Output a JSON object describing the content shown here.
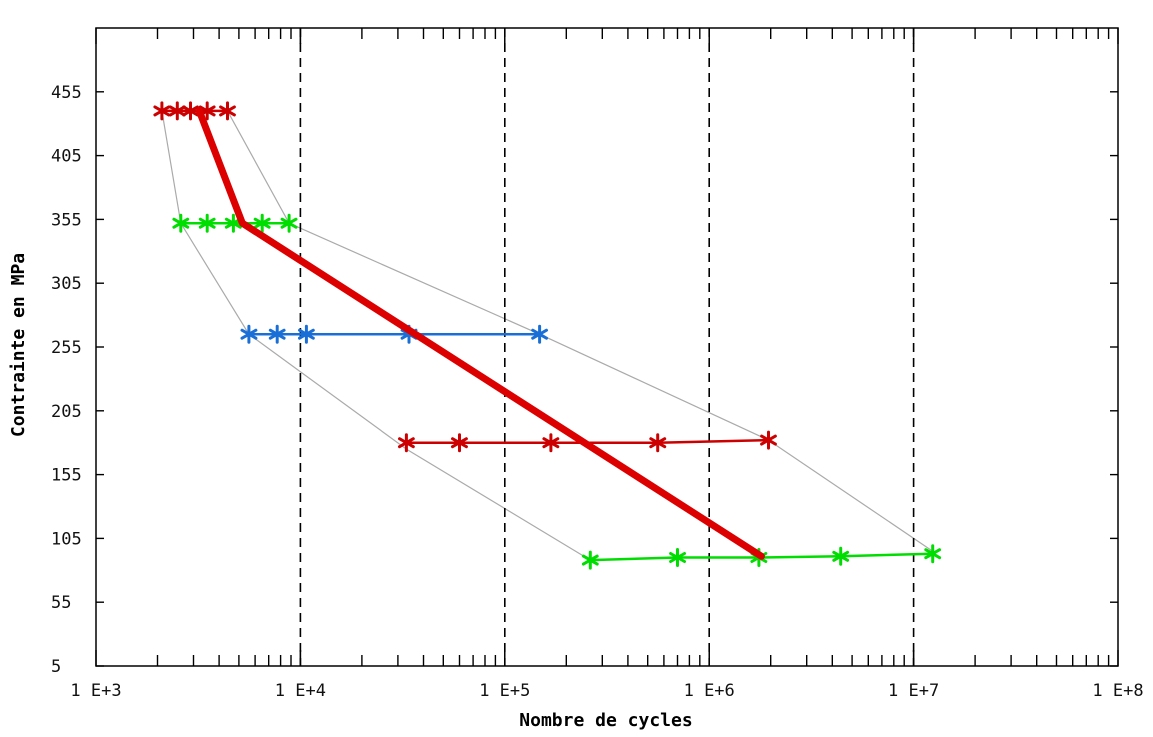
{
  "chart_data": {
    "type": "scatter",
    "title": "",
    "xlabel": "Nombre de cycles",
    "ylabel": "Contrainte en MPa",
    "x_scale": "log",
    "xlim": [
      1000,
      100000000
    ],
    "ylim": [
      5,
      505
    ],
    "x_tick_values": [
      1000,
      10000,
      100000,
      1000000,
      10000000,
      100000000
    ],
    "x_tick_labels": [
      "1 E+3",
      "1 E+4",
      "1 E+5",
      "1 E+6",
      "1 E+7",
      "1 E+8"
    ],
    "y_ticks": [
      5,
      55,
      105,
      155,
      205,
      255,
      305,
      355,
      405,
      455
    ],
    "vertical_dashed_lines_at": [
      10000,
      100000,
      1000000,
      10000000
    ],
    "grid": false,
    "legend": "none",
    "series": [
      {
        "color": "#cc0000",
        "marker": "star",
        "points": [
          [
            2100,
            440
          ],
          [
            2500,
            440
          ],
          [
            2900,
            440
          ],
          [
            3500,
            440
          ],
          [
            4400,
            440
          ]
        ]
      },
      {
        "color": "#00dd00",
        "marker": "star",
        "points": [
          [
            2600,
            352
          ],
          [
            3500,
            352
          ],
          [
            4700,
            352
          ],
          [
            6500,
            352
          ],
          [
            8800,
            352
          ]
        ]
      },
      {
        "color": "#1a6fd6",
        "marker": "star",
        "points": [
          [
            5600,
            265
          ],
          [
            7700,
            265
          ],
          [
            10700,
            265
          ],
          [
            34000,
            265
          ],
          [
            148000,
            265
          ]
        ]
      },
      {
        "color": "#cc0000",
        "marker": "star",
        "points": [
          [
            33000,
            180
          ],
          [
            60000,
            180
          ],
          [
            168000,
            180
          ],
          [
            560000,
            180
          ],
          [
            1950000,
            182
          ]
        ]
      },
      {
        "color": "#00dd00",
        "marker": "star",
        "points": [
          [
            262000,
            88
          ],
          [
            700000,
            90
          ],
          [
            1750000,
            90
          ],
          [
            4400000,
            91
          ],
          [
            12400000,
            93
          ]
        ]
      }
    ],
    "mean_curve": {
      "color": "#dd0000",
      "points": [
        [
          3200,
          440
        ],
        [
          5200,
          352
        ],
        [
          1800000,
          91
        ]
      ]
    },
    "envelope": {
      "color": "#aaaaaa",
      "lower": [
        [
          2100,
          440
        ],
        [
          2600,
          352
        ],
        [
          5600,
          265
        ],
        [
          33000,
          175
        ],
        [
          262000,
          88
        ]
      ],
      "upper": [
        [
          4400,
          440
        ],
        [
          8800,
          352
        ],
        [
          148000,
          265
        ],
        [
          1950000,
          182
        ],
        [
          12400000,
          95
        ]
      ]
    },
    "colors": {
      "frame": "#000000",
      "dashed": "#000000"
    }
  }
}
